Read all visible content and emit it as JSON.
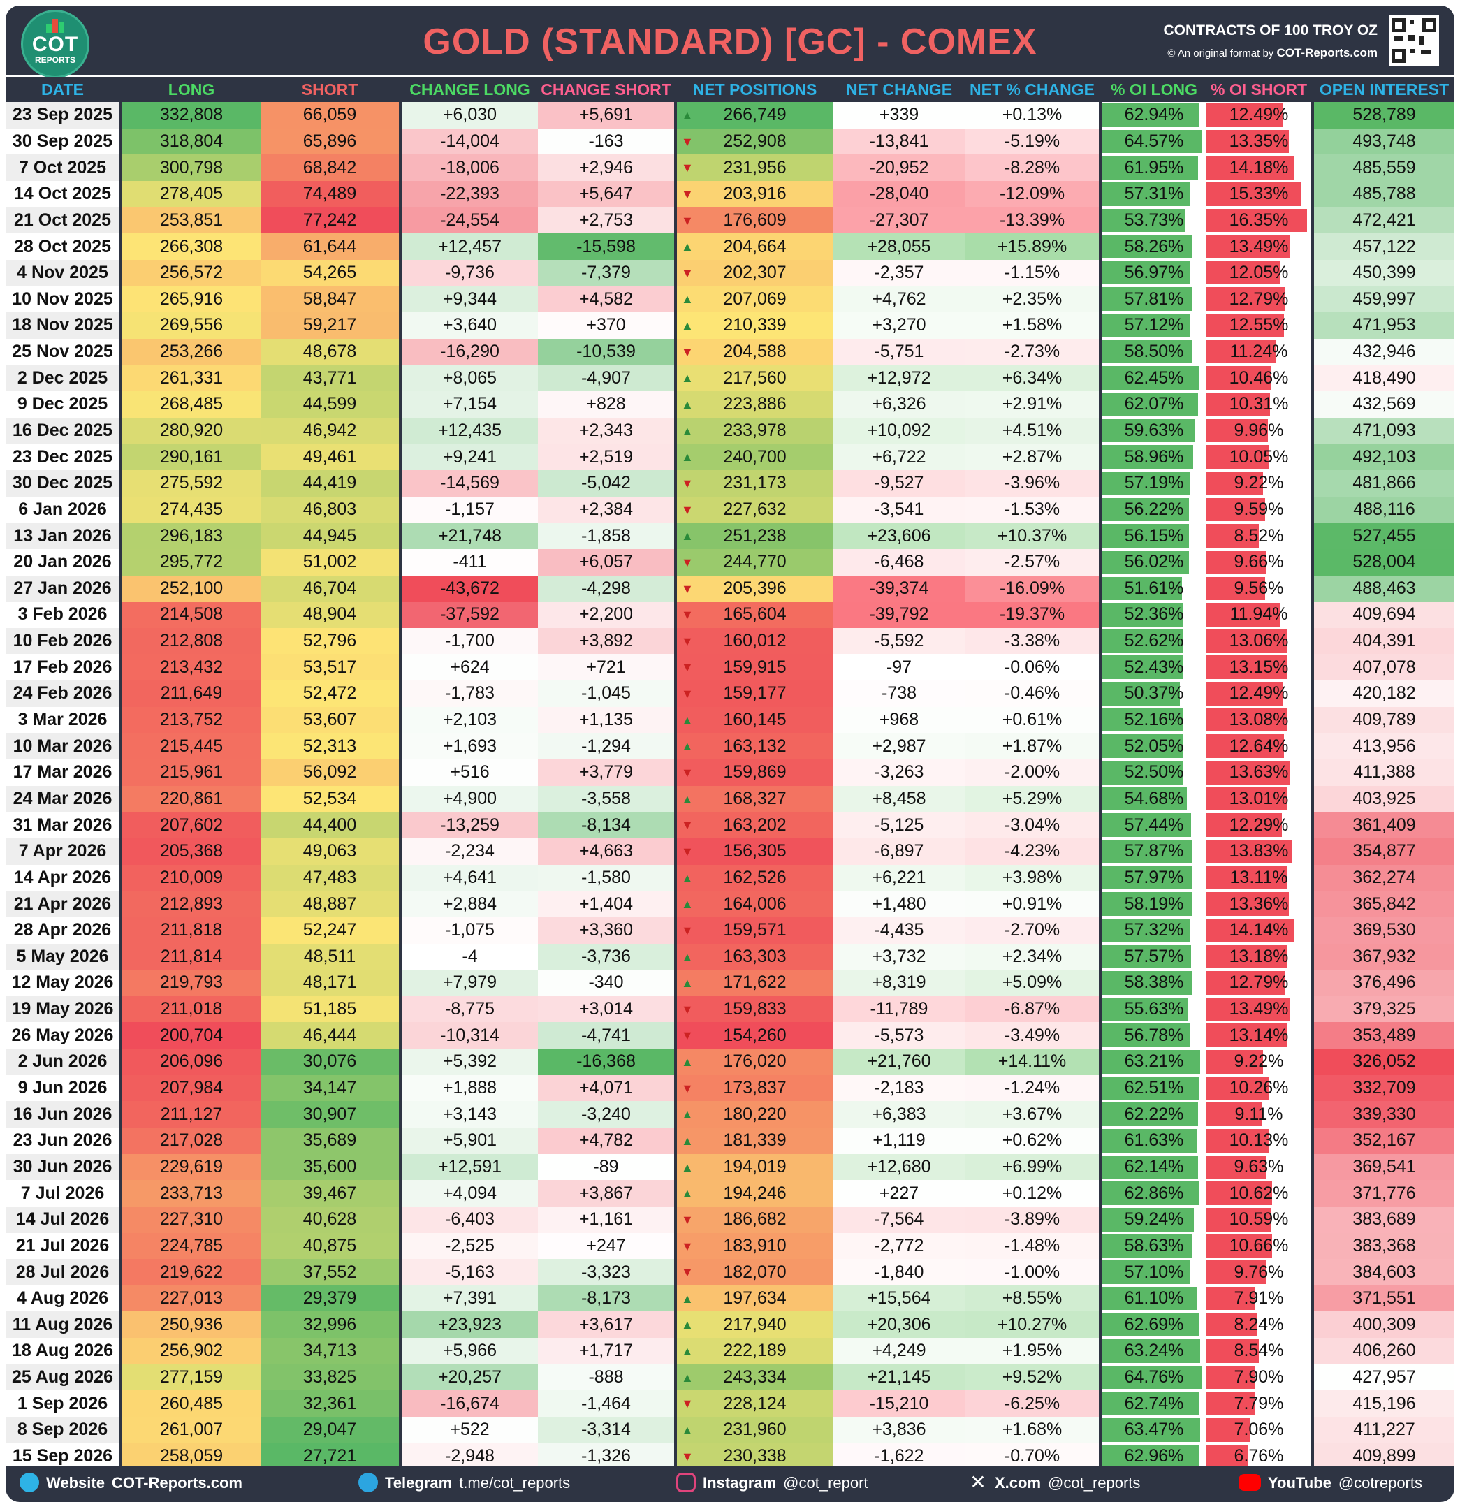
{
  "header": {
    "logo_text": "COT",
    "logo_sub": "REPORTS",
    "title": "GOLD (STANDARD) [GC] - COMEX",
    "contracts": "CONTRACTS OF 100 TROY OZ",
    "format_prefix": "© An original format by",
    "format_site": "COT-Reports.com"
  },
  "columns": [
    "DATE",
    "LONG",
    "SHORT",
    "CHANGE LONG",
    "CHANGE SHORT",
    "NET POSITIONS",
    "NET CHANGE",
    "NET % CHANGE",
    "% OI LONG",
    "% OI SHORT",
    "OPEN INTEREST"
  ],
  "colors": {
    "dark": "#2e3443",
    "header_blue": "#2eb3e6",
    "header_green": "#4cd964",
    "header_red": "#f06262",
    "header_pink": "#ff5f8f",
    "green": "#5ab866",
    "red": "#f04d5a",
    "yellow": "#fde575"
  },
  "chart_data": {
    "type": "table",
    "rows": [
      [
        "23 Sep 2025",
        "332,808",
        "66,059",
        "+6,030",
        "+5,691",
        "266,749",
        "+339",
        "+0.13%",
        "62.94%",
        "12.49%",
        "528,789",
        "up"
      ],
      [
        "30 Sep 2025",
        "318,804",
        "65,896",
        "-14,004",
        "-163",
        "252,908",
        "-13,841",
        "-5.19%",
        "64.57%",
        "13.35%",
        "493,748",
        "down"
      ],
      [
        "7 Oct 2025",
        "300,798",
        "68,842",
        "-18,006",
        "+2,946",
        "231,956",
        "-20,952",
        "-8.28%",
        "61.95%",
        "14.18%",
        "485,559",
        "down"
      ],
      [
        "14 Oct 2025",
        "278,405",
        "74,489",
        "-22,393",
        "+5,647",
        "203,916",
        "-28,040",
        "-12.09%",
        "57.31%",
        "15.33%",
        "485,788",
        "down"
      ],
      [
        "21 Oct 2025",
        "253,851",
        "77,242",
        "-24,554",
        "+2,753",
        "176,609",
        "-27,307",
        "-13.39%",
        "53.73%",
        "16.35%",
        "472,421",
        "down"
      ],
      [
        "28 Oct 2025",
        "266,308",
        "61,644",
        "+12,457",
        "-15,598",
        "204,664",
        "+28,055",
        "+15.89%",
        "58.26%",
        "13.49%",
        "457,122",
        "up"
      ],
      [
        "4 Nov 2025",
        "256,572",
        "54,265",
        "-9,736",
        "-7,379",
        "202,307",
        "-2,357",
        "-1.15%",
        "56.97%",
        "12.05%",
        "450,399",
        "down"
      ],
      [
        "10 Nov 2025",
        "265,916",
        "58,847",
        "+9,344",
        "+4,582",
        "207,069",
        "+4,762",
        "+2.35%",
        "57.81%",
        "12.79%",
        "459,997",
        "up"
      ],
      [
        "18 Nov 2025",
        "269,556",
        "59,217",
        "+3,640",
        "+370",
        "210,339",
        "+3,270",
        "+1.58%",
        "57.12%",
        "12.55%",
        "471,953",
        "up"
      ],
      [
        "25 Nov 2025",
        "253,266",
        "48,678",
        "-16,290",
        "-10,539",
        "204,588",
        "-5,751",
        "-2.73%",
        "58.50%",
        "11.24%",
        "432,946",
        "down"
      ],
      [
        "2 Dec 2025",
        "261,331",
        "43,771",
        "+8,065",
        "-4,907",
        "217,560",
        "+12,972",
        "+6.34%",
        "62.45%",
        "10.46%",
        "418,490",
        "up"
      ],
      [
        "9 Dec 2025",
        "268,485",
        "44,599",
        "+7,154",
        "+828",
        "223,886",
        "+6,326",
        "+2.91%",
        "62.07%",
        "10.31%",
        "432,569",
        "up"
      ],
      [
        "16 Dec 2025",
        "280,920",
        "46,942",
        "+12,435",
        "+2,343",
        "233,978",
        "+10,092",
        "+4.51%",
        "59.63%",
        "9.96%",
        "471,093",
        "up"
      ],
      [
        "23 Dec 2025",
        "290,161",
        "49,461",
        "+9,241",
        "+2,519",
        "240,700",
        "+6,722",
        "+2.87%",
        "58.96%",
        "10.05%",
        "492,103",
        "up"
      ],
      [
        "30 Dec 2025",
        "275,592",
        "44,419",
        "-14,569",
        "-5,042",
        "231,173",
        "-9,527",
        "-3.96%",
        "57.19%",
        "9.22%",
        "481,866",
        "down"
      ],
      [
        "6 Jan 2026",
        "274,435",
        "46,803",
        "-1,157",
        "+2,384",
        "227,632",
        "-3,541",
        "-1.53%",
        "56.22%",
        "9.59%",
        "488,116",
        "down"
      ],
      [
        "13 Jan 2026",
        "296,183",
        "44,945",
        "+21,748",
        "-1,858",
        "251,238",
        "+23,606",
        "+10.37%",
        "56.15%",
        "8.52%",
        "527,455",
        "up"
      ],
      [
        "20 Jan 2026",
        "295,772",
        "51,002",
        "-411",
        "+6,057",
        "244,770",
        "-6,468",
        "-2.57%",
        "56.02%",
        "9.66%",
        "528,004",
        "down"
      ],
      [
        "27 Jan 2026",
        "252,100",
        "46,704",
        "-43,672",
        "-4,298",
        "205,396",
        "-39,374",
        "-16.09%",
        "51.61%",
        "9.56%",
        "488,463",
        "down"
      ],
      [
        "3 Feb 2026",
        "214,508",
        "48,904",
        "-37,592",
        "+2,200",
        "165,604",
        "-39,792",
        "-19.37%",
        "52.36%",
        "11.94%",
        "409,694",
        "down"
      ],
      [
        "10 Feb 2026",
        "212,808",
        "52,796",
        "-1,700",
        "+3,892",
        "160,012",
        "-5,592",
        "-3.38%",
        "52.62%",
        "13.06%",
        "404,391",
        "down"
      ],
      [
        "17 Feb 2026",
        "213,432",
        "53,517",
        "+624",
        "+721",
        "159,915",
        "-97",
        "-0.06%",
        "52.43%",
        "13.15%",
        "407,078",
        "down"
      ],
      [
        "24 Feb 2026",
        "211,649",
        "52,472",
        "-1,783",
        "-1,045",
        "159,177",
        "-738",
        "-0.46%",
        "50.37%",
        "12.49%",
        "420,182",
        "down"
      ],
      [
        "3 Mar 2026",
        "213,752",
        "53,607",
        "+2,103",
        "+1,135",
        "160,145",
        "+968",
        "+0.61%",
        "52.16%",
        "13.08%",
        "409,789",
        "up"
      ],
      [
        "10 Mar 2026",
        "215,445",
        "52,313",
        "+1,693",
        "-1,294",
        "163,132",
        "+2,987",
        "+1.87%",
        "52.05%",
        "12.64%",
        "413,956",
        "up"
      ],
      [
        "17 Mar 2026",
        "215,961",
        "56,092",
        "+516",
        "+3,779",
        "159,869",
        "-3,263",
        "-2.00%",
        "52.50%",
        "13.63%",
        "411,388",
        "down"
      ],
      [
        "24 Mar 2026",
        "220,861",
        "52,534",
        "+4,900",
        "-3,558",
        "168,327",
        "+8,458",
        "+5.29%",
        "54.68%",
        "13.01%",
        "403,925",
        "up"
      ],
      [
        "31 Mar 2026",
        "207,602",
        "44,400",
        "-13,259",
        "-8,134",
        "163,202",
        "-5,125",
        "-3.04%",
        "57.44%",
        "12.29%",
        "361,409",
        "down"
      ],
      [
        "7 Apr 2026",
        "205,368",
        "49,063",
        "-2,234",
        "+4,663",
        "156,305",
        "-6,897",
        "-4.23%",
        "57.87%",
        "13.83%",
        "354,877",
        "down"
      ],
      [
        "14 Apr 2026",
        "210,009",
        "47,483",
        "+4,641",
        "-1,580",
        "162,526",
        "+6,221",
        "+3.98%",
        "57.97%",
        "13.11%",
        "362,274",
        "up"
      ],
      [
        "21 Apr 2026",
        "212,893",
        "48,887",
        "+2,884",
        "+1,404",
        "164,006",
        "+1,480",
        "+0.91%",
        "58.19%",
        "13.36%",
        "365,842",
        "up"
      ],
      [
        "28 Apr 2026",
        "211,818",
        "52,247",
        "-1,075",
        "+3,360",
        "159,571",
        "-4,435",
        "-2.70%",
        "57.32%",
        "14.14%",
        "369,530",
        "down"
      ],
      [
        "5 May 2026",
        "211,814",
        "48,511",
        "-4",
        "-3,736",
        "163,303",
        "+3,732",
        "+2.34%",
        "57.57%",
        "13.18%",
        "367,932",
        "up"
      ],
      [
        "12 May 2026",
        "219,793",
        "48,171",
        "+7,979",
        "-340",
        "171,622",
        "+8,319",
        "+5.09%",
        "58.38%",
        "12.79%",
        "376,496",
        "up"
      ],
      [
        "19 May 2026",
        "211,018",
        "51,185",
        "-8,775",
        "+3,014",
        "159,833",
        "-11,789",
        "-6.87%",
        "55.63%",
        "13.49%",
        "379,325",
        "down"
      ],
      [
        "26 May 2026",
        "200,704",
        "46,444",
        "-10,314",
        "-4,741",
        "154,260",
        "-5,573",
        "-3.49%",
        "56.78%",
        "13.14%",
        "353,489",
        "down"
      ],
      [
        "2 Jun 2026",
        "206,096",
        "30,076",
        "+5,392",
        "-16,368",
        "176,020",
        "+21,760",
        "+14.11%",
        "63.21%",
        "9.22%",
        "326,052",
        "up"
      ],
      [
        "9 Jun 2026",
        "207,984",
        "34,147",
        "+1,888",
        "+4,071",
        "173,837",
        "-2,183",
        "-1.24%",
        "62.51%",
        "10.26%",
        "332,709",
        "down"
      ],
      [
        "16 Jun 2026",
        "211,127",
        "30,907",
        "+3,143",
        "-3,240",
        "180,220",
        "+6,383",
        "+3.67%",
        "62.22%",
        "9.11%",
        "339,330",
        "up"
      ],
      [
        "23 Jun 2026",
        "217,028",
        "35,689",
        "+5,901",
        "+4,782",
        "181,339",
        "+1,119",
        "+0.62%",
        "61.63%",
        "10.13%",
        "352,167",
        "up"
      ],
      [
        "30 Jun 2026",
        "229,619",
        "35,600",
        "+12,591",
        "-89",
        "194,019",
        "+12,680",
        "+6.99%",
        "62.14%",
        "9.63%",
        "369,541",
        "up"
      ],
      [
        "7 Jul 2026",
        "233,713",
        "39,467",
        "+4,094",
        "+3,867",
        "194,246",
        "+227",
        "+0.12%",
        "62.86%",
        "10.62%",
        "371,776",
        "up"
      ],
      [
        "14 Jul 2026",
        "227,310",
        "40,628",
        "-6,403",
        "+1,161",
        "186,682",
        "-7,564",
        "-3.89%",
        "59.24%",
        "10.59%",
        "383,689",
        "down"
      ],
      [
        "21 Jul 2026",
        "224,785",
        "40,875",
        "-2,525",
        "+247",
        "183,910",
        "-2,772",
        "-1.48%",
        "58.63%",
        "10.66%",
        "383,368",
        "down"
      ],
      [
        "28 Jul 2026",
        "219,622",
        "37,552",
        "-5,163",
        "-3,323",
        "182,070",
        "-1,840",
        "-1.00%",
        "57.10%",
        "9.76%",
        "384,603",
        "down"
      ],
      [
        "4 Aug 2026",
        "227,013",
        "29,379",
        "+7,391",
        "-8,173",
        "197,634",
        "+15,564",
        "+8.55%",
        "61.10%",
        "7.91%",
        "371,551",
        "up"
      ],
      [
        "11 Aug 2026",
        "250,936",
        "32,996",
        "+23,923",
        "+3,617",
        "217,940",
        "+20,306",
        "+10.27%",
        "62.69%",
        "8.24%",
        "400,309",
        "up"
      ],
      [
        "18 Aug 2026",
        "256,902",
        "34,713",
        "+5,966",
        "+1,717",
        "222,189",
        "+4,249",
        "+1.95%",
        "63.24%",
        "8.54%",
        "406,260",
        "up"
      ],
      [
        "25 Aug 2026",
        "277,159",
        "33,825",
        "+20,257",
        "-888",
        "243,334",
        "+21,145",
        "+9.52%",
        "64.76%",
        "7.90%",
        "427,957",
        "up"
      ],
      [
        "1 Sep 2026",
        "260,485",
        "32,361",
        "-16,674",
        "-1,464",
        "228,124",
        "-15,210",
        "-6.25%",
        "62.74%",
        "7.79%",
        "415,196",
        "down"
      ],
      [
        "8 Sep 2026",
        "261,007",
        "29,047",
        "+522",
        "-3,314",
        "231,960",
        "+3,836",
        "+1.68%",
        "63.47%",
        "7.06%",
        "411,227",
        "up"
      ],
      [
        "15 Sep 2026",
        "258,059",
        "27,721",
        "-2,948",
        "-1,326",
        "230,338",
        "-1,622",
        "-0.70%",
        "62.96%",
        "6.76%",
        "409,899",
        "down"
      ]
    ]
  },
  "footer": {
    "website_label": "Website",
    "website_value": "COT-Reports.com",
    "telegram_label": "Telegram",
    "telegram_value": "t.me/cot_reports",
    "instagram_label": "Instagram",
    "instagram_value": "@cot_report",
    "x_label": "X.com",
    "x_value": "@cot_reports",
    "youtube_label": "YouTube",
    "youtube_value": "@cotreports"
  }
}
